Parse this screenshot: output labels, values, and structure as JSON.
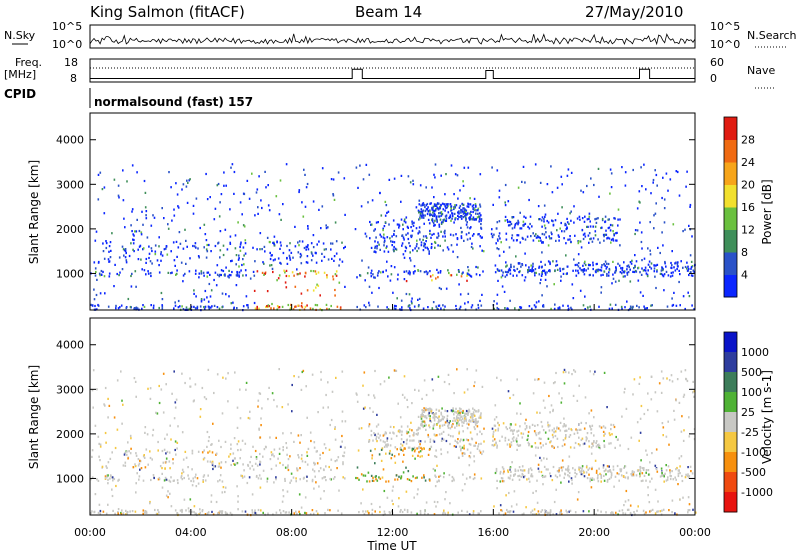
{
  "header": {
    "station": "King Salmon (fitACF)",
    "beam": "Beam 14",
    "date": "27/May/2010"
  },
  "side_labels": {
    "nsky": "N.Sky",
    "nsearch": "N.Search",
    "freq": "Freq.",
    "freq_unit": "[MHz]",
    "nave": "Nave",
    "cpid": "CPID"
  },
  "cpid_value": "normalsound (fast) 157",
  "colors": {
    "power": [
      "#0b26ff",
      "#2a52c8",
      "#3f8f5a",
      "#6ac03f",
      "#f2e02e",
      "#f7a51a",
      "#f06a12",
      "#e01c12"
    ],
    "velocity": [
      "#e81410",
      "#f04a10",
      "#f7900e",
      "#f5c842",
      "#c8c8c4",
      "#4fb235",
      "#3d7d5a",
      "#2e3d9e",
      "#0a14c8"
    ]
  },
  "chart_data": [
    {
      "type": "line",
      "name": "noise-panel",
      "left_axis": "N.Sky",
      "right_axis": "N.Search",
      "y_ticks": [
        "10^5",
        "10^0"
      ],
      "x_range": [
        0,
        24
      ]
    },
    {
      "type": "line",
      "name": "freq-nave-panel",
      "left_axis": "Freq. [MHz]",
      "right_axis": "Nave",
      "left_ticks": [
        8,
        18
      ],
      "right_ticks": [
        0,
        60
      ],
      "freq_segments": [
        {
          "t0": 0,
          "t1": 10.4,
          "value": 9.5
        },
        {
          "t0": 10.4,
          "t1": 10.8,
          "value": 13.5
        },
        {
          "t0": 10.8,
          "t1": 15.7,
          "value": 9.5
        },
        {
          "t0": 15.7,
          "t1": 16.0,
          "value": 13.0
        },
        {
          "t0": 16.0,
          "t1": 21.8,
          "value": 9.5
        },
        {
          "t0": 21.8,
          "t1": 22.2,
          "value": 13.5
        },
        {
          "t0": 22.2,
          "t1": 24,
          "value": 9.5
        }
      ]
    },
    {
      "type": "heatmap",
      "name": "power-panel",
      "ylabel": "Slant Range [km]",
      "y_ticks": [
        1000,
        2000,
        3000,
        4000
      ],
      "ylim": [
        180,
        4600
      ],
      "colorbar_label": "Power [dB]",
      "colorbar_ticks": [
        "4",
        "8",
        "12",
        "16",
        "20",
        "24",
        "28"
      ],
      "x_range": [
        0,
        24
      ]
    },
    {
      "type": "heatmap",
      "name": "velocity-panel",
      "ylabel": "Slant Range [km]",
      "y_ticks": [
        1000,
        2000,
        3000,
        4000
      ],
      "ylim": [
        180,
        4600
      ],
      "colorbar_label": "Velocity [m s-1]",
      "colorbar_ticks": [
        "1000",
        "500",
        "100",
        "25",
        "-25",
        "-100",
        "-500",
        "-1000"
      ],
      "x_range": [
        0,
        24
      ],
      "xlabel": "Time UT",
      "x_ticks": [
        "00:00",
        "04:00",
        "08:00",
        "12:00",
        "16:00",
        "20:00",
        "00:00"
      ]
    }
  ]
}
